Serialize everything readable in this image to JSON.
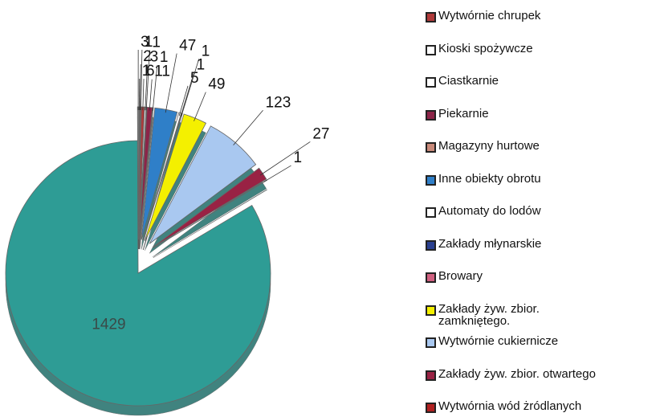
{
  "chart_data": {
    "type": "pie",
    "categories": [
      "Wytwórnie chrupek",
      "Kioski spożywcze",
      "Ciastkarnie",
      "Piekarnie",
      "Magazyny hurtowe",
      "Inne obiekty obrotu",
      "Automaty do lodów",
      "Zakłady młynarskie",
      "Browary",
      "Zakłady żyw. zbior. zamkniętego.",
      "Wytwórnie cukiernicze",
      "Zakłady żyw. zbior. otwartego",
      "Wytwórnia wód żródlanych",
      null,
      null,
      null,
      null,
      null
    ],
    "values": [
      6,
      3,
      1,
      11,
      1,
      47,
      5,
      1,
      1,
      49,
      123,
      27,
      1,
      1429,
      3,
      1,
      2,
      1
    ],
    "colors": [
      "#b03a3a",
      "#ffffff",
      "#ffffff",
      "#8c2448",
      "#c98a7a",
      "#2f7fc8",
      "#ffffff",
      "#2a3f8f",
      "#d06080",
      "#f4f000",
      "#a9c8f0",
      "#992244",
      "#b02020",
      "#2e9c95",
      "#8a8a8a",
      "#c0c0c0",
      "#707070",
      "#d0d0d0"
    ],
    "legend": "right"
  }
}
